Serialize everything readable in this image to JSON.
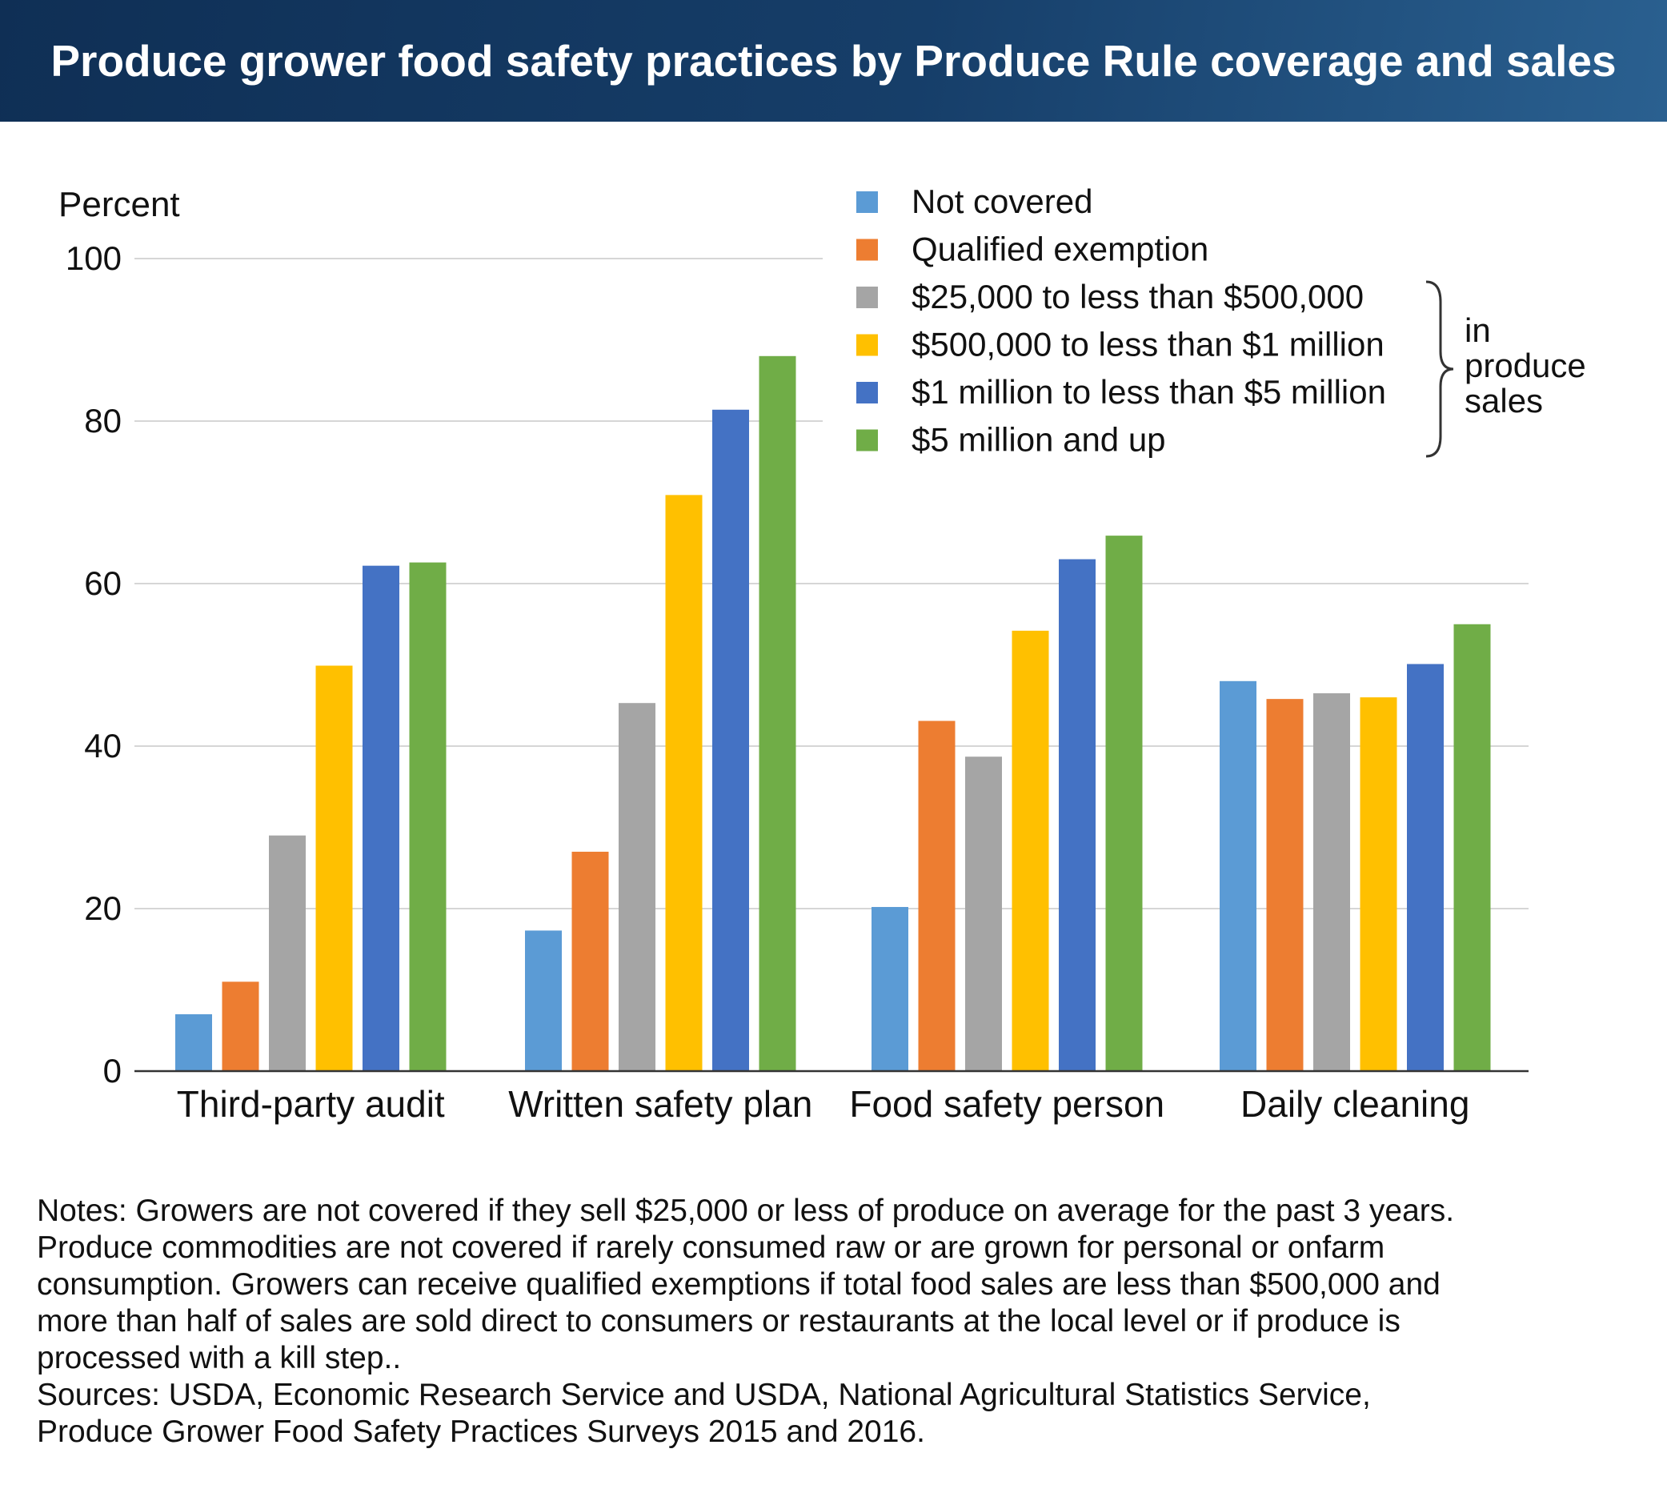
{
  "header": {
    "title": "Produce grower food safety practices by Produce Rule coverage and sales"
  },
  "chart_data": {
    "type": "bar",
    "ylabel": "Percent",
    "ylim": [
      0,
      100
    ],
    "yticks": [
      0,
      20,
      40,
      60,
      80,
      100
    ],
    "grid": true,
    "legend_position": "top-right",
    "categories": [
      "Third-party audit",
      "Written safety plan",
      "Food safety person",
      "Daily cleaning"
    ],
    "series": [
      {
        "name": "Not covered",
        "color": "#5b9bd5",
        "values": [
          7,
          17.3,
          20.2,
          48
        ]
      },
      {
        "name": "Qualified exemption",
        "color": "#ed7d31",
        "values": [
          11,
          27,
          43.1,
          45.8
        ]
      },
      {
        "name": "$25,000 to less than $500,000",
        "color": "#a5a5a5",
        "values": [
          29,
          45.3,
          38.7,
          46.5
        ]
      },
      {
        "name": "$500,000 to less than $1 million",
        "color": "#ffc000",
        "values": [
          49.9,
          70.9,
          54.2,
          46
        ]
      },
      {
        "name": "$1 million to less than $5 million",
        "color": "#4472c4",
        "values": [
          62.2,
          81.4,
          63,
          50.1
        ]
      },
      {
        "name": "$5 million and up",
        "color": "#70ad47",
        "values": [
          62.6,
          88,
          65.9,
          55
        ]
      }
    ],
    "bracket_label_lines": [
      "in",
      "produce",
      "sales"
    ]
  },
  "notes": {
    "lines": [
      "Notes: Growers are not covered if they sell $25,000 or less of produce on average for the past 3 years.",
      "Produce commodities are not covered if rarely consumed raw or are grown for personal or onfarm",
      "consumption. Growers can receive qualified exemptions if total food sales are less than $500,000 and",
      "more than half of sales are sold direct to consumers or restaurants at the local level or if produce is",
      "processed with a kill step..",
      "Sources: USDA, Economic Research Service and USDA, National Agricultural Statistics Service,",
      "Produce Grower Food Safety Practices Surveys 2015 and 2016."
    ]
  }
}
